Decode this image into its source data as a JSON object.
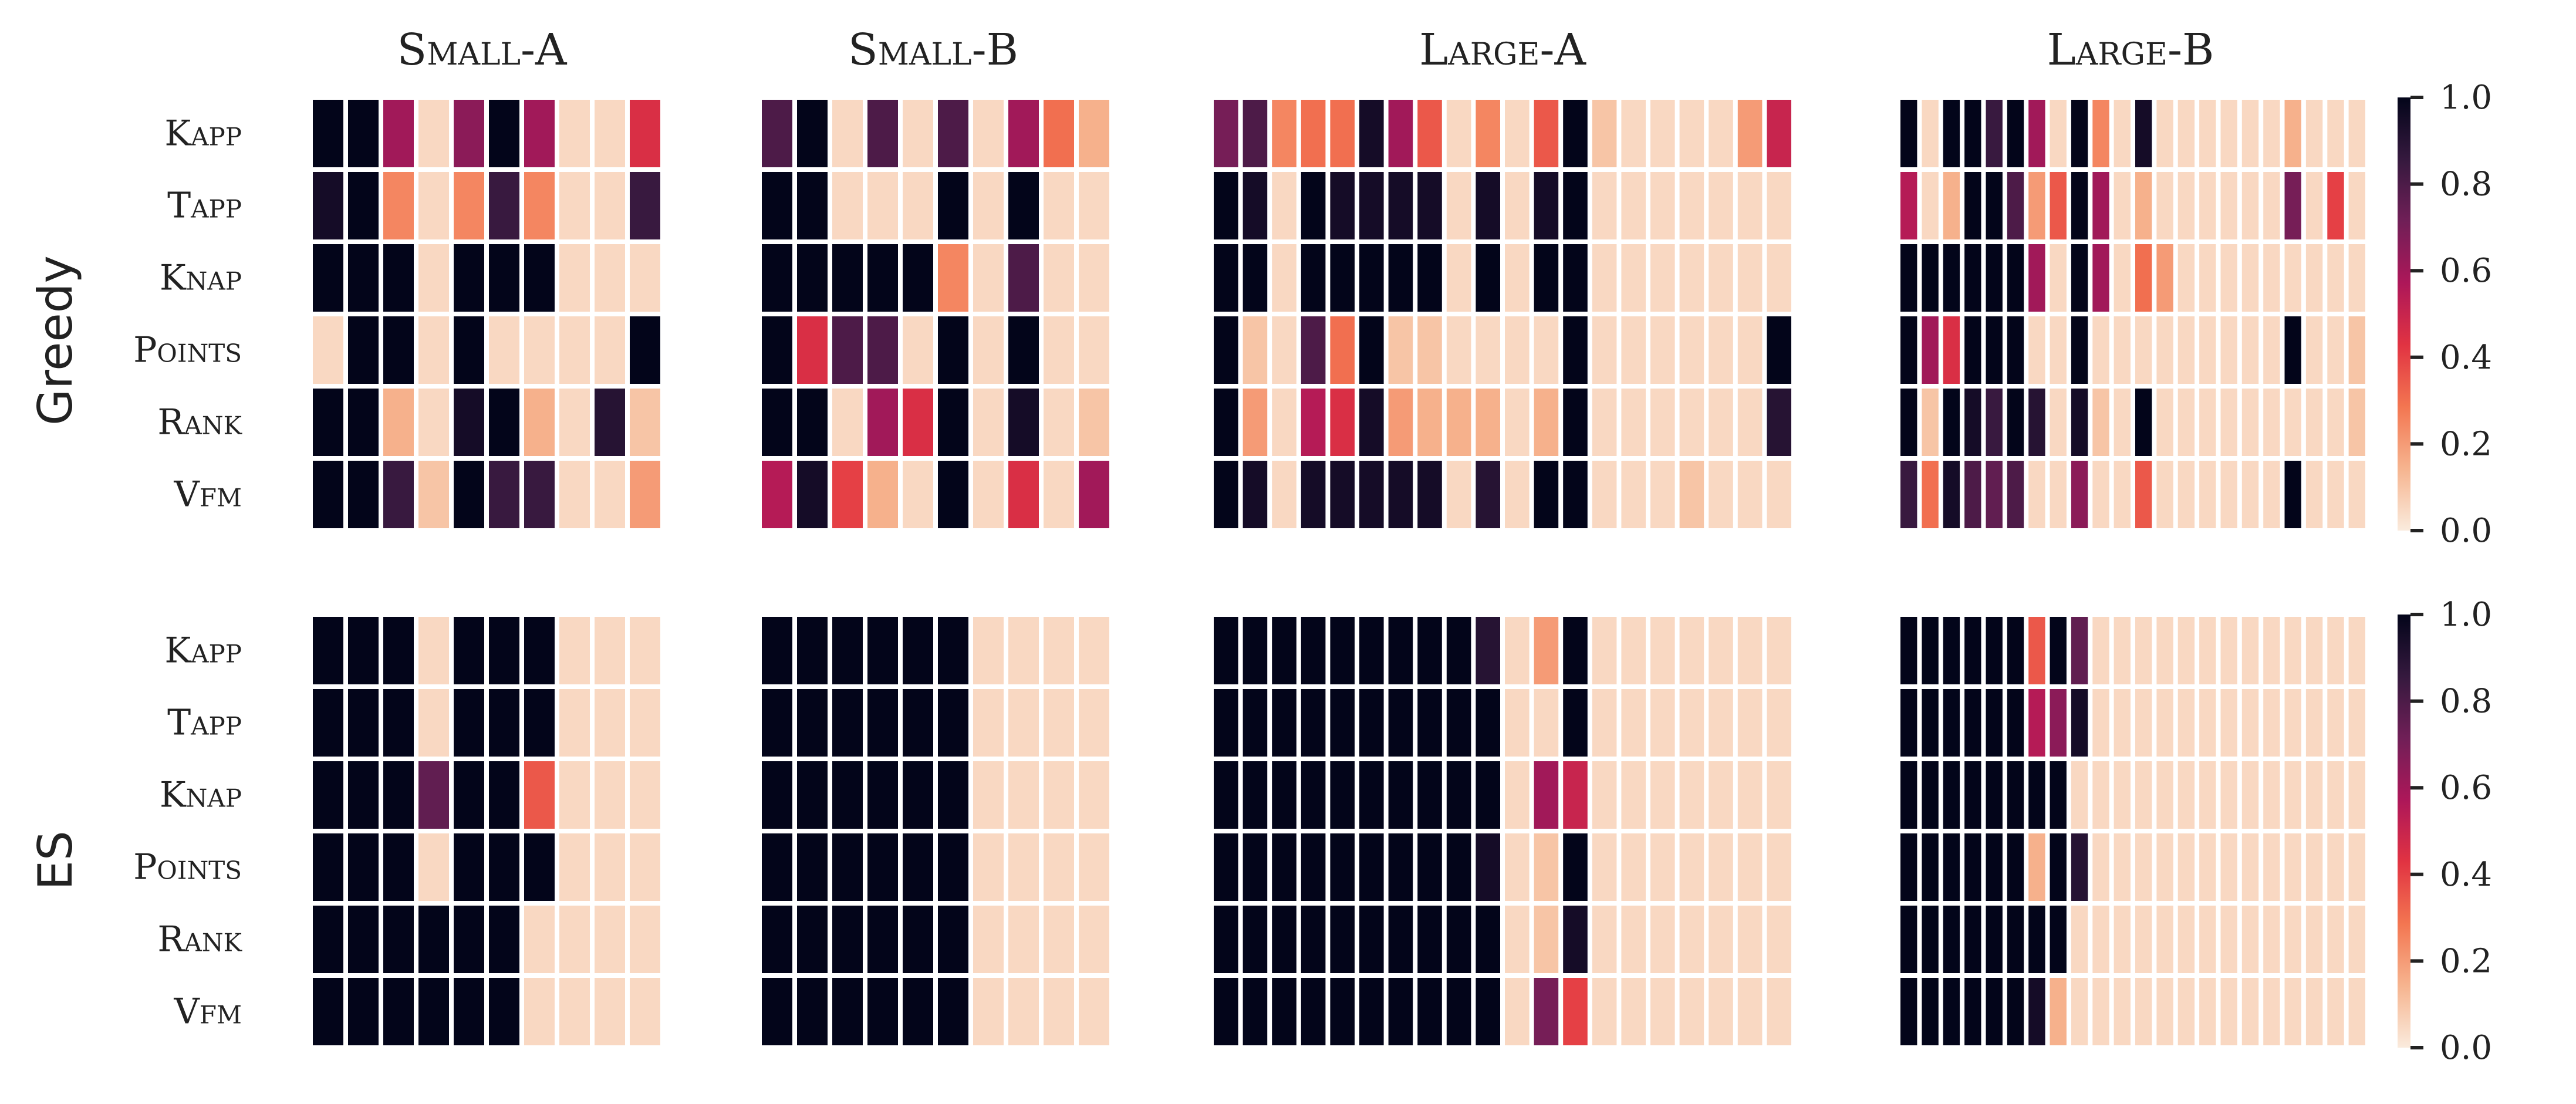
{
  "chart_data": {
    "type": "heatmap",
    "columns": [
      "Small-A",
      "Small-B",
      "Large-A",
      "Large-B"
    ],
    "groups": [
      "Greedy",
      "ES"
    ],
    "rows": [
      "Kapp",
      "Tapp",
      "Knap",
      "Points",
      "Rank",
      "Vfm"
    ],
    "colorbar": {
      "min": 0.0,
      "max": 1.0,
      "ticks": [
        "0.0",
        "0.2",
        "0.4",
        "0.6",
        "0.8",
        "1.0"
      ]
    },
    "colormap": [
      "#faebdd",
      "#f6b48f",
      "#f37651",
      "#e13342",
      "#ad1759",
      "#701f57",
      "#35193e",
      "#03051a"
    ],
    "grid_lines": false,
    "legend": "right",
    "cells": {
      "Greedy": {
        "Small-A": [
          [
            1,
            1,
            0.6,
            0.05,
            0.65,
            1,
            0.6,
            0.05,
            0.05,
            0.45
          ],
          [
            0.95,
            1,
            0.25,
            0.05,
            0.25,
            0.85,
            0.25,
            0.05,
            0.05,
            0.85
          ],
          [
            1,
            1,
            1,
            0.05,
            1,
            1,
            1,
            0.05,
            0.05,
            0.05
          ],
          [
            0.05,
            1,
            1,
            0.05,
            1,
            0.05,
            0.05,
            0.05,
            0.05,
            1
          ],
          [
            1,
            1,
            0.15,
            0.05,
            0.95,
            1,
            0.15,
            0.05,
            0.9,
            0.1
          ],
          [
            1,
            1,
            0.85,
            0.1,
            1,
            0.85,
            0.85,
            0.05,
            0.05,
            0.2
          ]
        ],
        "Small-B": [
          [
            0.8,
            1,
            0.05,
            0.8,
            0.05,
            0.8,
            0.05,
            0.6,
            0.3,
            0.15
          ],
          [
            1,
            1,
            0.05,
            0.05,
            0.05,
            1,
            0.05,
            1,
            0.05,
            0.05
          ],
          [
            1,
            1,
            1,
            1,
            1,
            0.25,
            0.05,
            0.8,
            0.05,
            0.05
          ],
          [
            1,
            0.45,
            0.8,
            0.8,
            0.05,
            1,
            0.05,
            1,
            0.05,
            0.05
          ],
          [
            1,
            1,
            0.05,
            0.6,
            0.45,
            1,
            0.05,
            0.95,
            0.05,
            0.1
          ],
          [
            0.55,
            0.95,
            0.4,
            0.15,
            0.05,
            1,
            0.05,
            0.45,
            0.05,
            0.6
          ]
        ],
        "Large-A": [
          [
            0.7,
            0.8,
            0.25,
            0.3,
            0.3,
            0.95,
            0.6,
            0.35,
            0.05,
            0.25,
            0.05,
            0.35,
            1,
            0.1,
            0.05,
            0.05,
            0.05,
            0.05,
            0.2,
            0.5
          ],
          [
            1,
            0.95,
            0.05,
            1,
            0.95,
            0.95,
            0.95,
            0.95,
            0.05,
            0.95,
            0.05,
            0.95,
            1,
            0.05,
            0.05,
            0.05,
            0.05,
            0.05,
            0.05,
            0.05
          ],
          [
            1,
            1,
            0.05,
            1,
            1,
            1,
            1,
            1,
            0.05,
            1,
            0.05,
            1,
            1,
            0.05,
            0.05,
            0.05,
            0.05,
            0.05,
            0.05,
            0.05
          ],
          [
            1,
            0.1,
            0.05,
            0.8,
            0.3,
            1,
            0.1,
            0.1,
            0.05,
            0.05,
            0.05,
            0.05,
            1,
            0.05,
            0.05,
            0.05,
            0.05,
            0.05,
            0.05,
            1
          ],
          [
            1,
            0.2,
            0.05,
            0.55,
            0.45,
            0.95,
            0.2,
            0.15,
            0.15,
            0.15,
            0.05,
            0.15,
            1,
            0.05,
            0.05,
            0.05,
            0.05,
            0.05,
            0.05,
            0.9
          ],
          [
            1,
            0.95,
            0.05,
            0.95,
            0.95,
            0.95,
            0.95,
            0.95,
            0.05,
            0.9,
            0.05,
            1,
            1,
            0.05,
            0.05,
            0.05,
            0.1,
            0.05,
            0.05,
            0.05
          ]
        ],
        "Large-B": [
          [
            1,
            0.05,
            1,
            1,
            0.85,
            1,
            0.6,
            0.05,
            1,
            0.25,
            0.05,
            0.95,
            0.05,
            0.05,
            0.05,
            0.05,
            0.05,
            0.05,
            0.15,
            0.05,
            0.05,
            0.05
          ],
          [
            0.55,
            0.05,
            0.15,
            1,
            1,
            0.8,
            0.2,
            0.35,
            1,
            0.6,
            0.05,
            0.15,
            0.05,
            0.05,
            0.05,
            0.05,
            0.05,
            0.05,
            0.7,
            0.05,
            0.4,
            0.05
          ],
          [
            1,
            1,
            1,
            1,
            1,
            1,
            0.6,
            0.05,
            1,
            0.6,
            0.05,
            0.3,
            0.2,
            0.05,
            0.05,
            0.05,
            0.05,
            0.05,
            0.05,
            0.05,
            0.05,
            0.05
          ],
          [
            1,
            0.6,
            0.45,
            1,
            1,
            1,
            0.05,
            0.05,
            1,
            0.05,
            0.05,
            0.05,
            0.05,
            0.05,
            0.05,
            0.05,
            0.05,
            0.05,
            1,
            0.05,
            0.05,
            0.1
          ],
          [
            1,
            0.1,
            1,
            0.95,
            0.85,
            1,
            0.9,
            0.05,
            0.95,
            0.1,
            0.05,
            1,
            0.05,
            0.05,
            0.05,
            0.05,
            0.05,
            0.05,
            0.05,
            0.05,
            0.05,
            0.1
          ],
          [
            0.85,
            0.3,
            0.95,
            0.8,
            0.75,
            0.8,
            0.05,
            0.05,
            0.65,
            0.05,
            0.05,
            0.35,
            0.05,
            0.05,
            0.05,
            0.05,
            0.05,
            0.05,
            1,
            0.05,
            0.05,
            0.05
          ]
        ]
      },
      "ES": {
        "Small-A": [
          [
            1,
            1,
            1,
            0.05,
            1,
            1,
            1,
            0.05,
            0.05,
            0.05
          ],
          [
            1,
            1,
            1,
            0.05,
            1,
            1,
            1,
            0.05,
            0.05,
            0.05
          ],
          [
            1,
            1,
            1,
            0.75,
            1,
            1,
            0.35,
            0.05,
            0.05,
            0.05
          ],
          [
            1,
            1,
            1,
            0.05,
            1,
            1,
            1,
            0.05,
            0.05,
            0.05
          ],
          [
            1,
            1,
            1,
            1,
            1,
            1,
            0.05,
            0.05,
            0.05,
            0.05
          ],
          [
            1,
            1,
            1,
            1,
            1,
            1,
            0.05,
            0.05,
            0.05,
            0.05
          ]
        ],
        "Small-B": [
          [
            1,
            1,
            1,
            1,
            1,
            1,
            0.05,
            0.05,
            0.05,
            0.05
          ],
          [
            1,
            1,
            1,
            1,
            1,
            1,
            0.05,
            0.05,
            0.05,
            0.05
          ],
          [
            1,
            1,
            1,
            1,
            1,
            1,
            0.05,
            0.05,
            0.05,
            0.05
          ],
          [
            1,
            1,
            1,
            1,
            1,
            1,
            0.05,
            0.05,
            0.05,
            0.05
          ],
          [
            1,
            1,
            1,
            1,
            1,
            1,
            0.05,
            0.05,
            0.05,
            0.05
          ],
          [
            1,
            1,
            1,
            1,
            1,
            1,
            0.05,
            0.05,
            0.05,
            0.05
          ]
        ],
        "Large-A": [
          [
            1,
            1,
            1,
            1,
            1,
            1,
            1,
            1,
            1,
            0.9,
            0.05,
            0.2,
            1,
            0.05,
            0.05,
            0.05,
            0.05,
            0.05,
            0.05,
            0.05
          ],
          [
            1,
            1,
            1,
            1,
            1,
            1,
            1,
            1,
            1,
            1,
            0.05,
            0.05,
            1,
            0.05,
            0.05,
            0.05,
            0.05,
            0.05,
            0.05,
            0.05
          ],
          [
            1,
            1,
            1,
            1,
            1,
            1,
            1,
            1,
            1,
            1,
            0.05,
            0.6,
            0.5,
            0.05,
            0.05,
            0.05,
            0.05,
            0.05,
            0.05,
            0.05
          ],
          [
            1,
            1,
            1,
            1,
            1,
            1,
            1,
            1,
            1,
            0.95,
            0.05,
            0.1,
            1,
            0.05,
            0.05,
            0.05,
            0.05,
            0.05,
            0.05,
            0.05
          ],
          [
            1,
            1,
            1,
            1,
            1,
            1,
            1,
            1,
            1,
            1,
            0.05,
            0.1,
            0.95,
            0.05,
            0.05,
            0.05,
            0.05,
            0.05,
            0.05,
            0.05
          ],
          [
            1,
            1,
            1,
            1,
            1,
            1,
            1,
            1,
            1,
            1,
            0.05,
            0.7,
            0.4,
            0.05,
            0.05,
            0.05,
            0.05,
            0.05,
            0.05,
            0.05
          ]
        ],
        "Large-B": [
          [
            1,
            1,
            1,
            1,
            1,
            1,
            0.35,
            1,
            0.75,
            0.05,
            0.05,
            0.05,
            0.05,
            0.05,
            0.05,
            0.05,
            0.05,
            0.05,
            0.05,
            0.05,
            0.05,
            0.05
          ],
          [
            1,
            1,
            1,
            1,
            1,
            1,
            0.55,
            0.65,
            0.95,
            0.05,
            0.05,
            0.05,
            0.05,
            0.05,
            0.05,
            0.05,
            0.05,
            0.05,
            0.05,
            0.05,
            0.05,
            0.05
          ],
          [
            1,
            1,
            1,
            1,
            1,
            1,
            1,
            1,
            0.05,
            0.05,
            0.05,
            0.05,
            0.05,
            0.05,
            0.05,
            0.05,
            0.05,
            0.05,
            0.05,
            0.05,
            0.05,
            0.05
          ],
          [
            1,
            1,
            1,
            1,
            1,
            1,
            0.15,
            1,
            0.9,
            0.05,
            0.05,
            0.05,
            0.05,
            0.05,
            0.05,
            0.05,
            0.05,
            0.05,
            0.05,
            0.05,
            0.05,
            0.05
          ],
          [
            1,
            1,
            1,
            1,
            1,
            1,
            1,
            1,
            0.05,
            0.05,
            0.05,
            0.05,
            0.05,
            0.05,
            0.05,
            0.05,
            0.05,
            0.05,
            0.05,
            0.05,
            0.05,
            0.05
          ],
          [
            1,
            1,
            1,
            1,
            1,
            1,
            0.95,
            0.15,
            0.05,
            0.05,
            0.05,
            0.05,
            0.05,
            0.05,
            0.05,
            0.05,
            0.05,
            0.05,
            0.05,
            0.05,
            0.05,
            0.05
          ]
        ]
      }
    }
  }
}
